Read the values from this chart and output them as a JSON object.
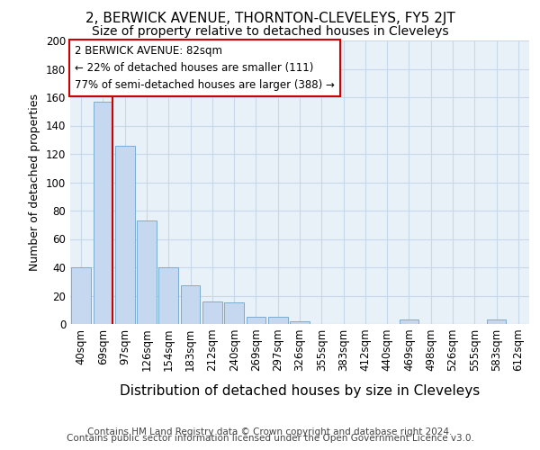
{
  "title": "2, BERWICK AVENUE, THORNTON-CLEVELEYS, FY5 2JT",
  "subtitle": "Size of property relative to detached houses in Cleveleys",
  "xlabel": "Distribution of detached houses by size in Cleveleys",
  "ylabel": "Number of detached properties",
  "categories": [
    "40sqm",
    "69sqm",
    "97sqm",
    "126sqm",
    "154sqm",
    "183sqm",
    "212sqm",
    "240sqm",
    "269sqm",
    "297sqm",
    "326sqm",
    "355sqm",
    "383sqm",
    "412sqm",
    "440sqm",
    "469sqm",
    "498sqm",
    "526sqm",
    "555sqm",
    "583sqm",
    "612sqm"
  ],
  "values": [
    40,
    157,
    126,
    73,
    40,
    27,
    16,
    15,
    5,
    5,
    2,
    0,
    0,
    0,
    0,
    3,
    0,
    0,
    0,
    3,
    0
  ],
  "bar_color": "#c5d8f0",
  "bar_edge_color": "#7aadd4",
  "grid_color": "#c8d8e8",
  "bg_color": "#e8f0f8",
  "vline_color": "#cc0000",
  "vline_x": 1.43,
  "annotation_text": "2 BERWICK AVENUE: 82sqm\n← 22% of detached houses are smaller (111)\n77% of semi-detached houses are larger (388) →",
  "annotation_box_color": "#ffffff",
  "annotation_box_edge": "#cc0000",
  "footer_line1": "Contains HM Land Registry data © Crown copyright and database right 2024.",
  "footer_line2": "Contains public sector information licensed under the Open Government Licence v3.0.",
  "ylim": [
    0,
    200
  ],
  "yticks": [
    0,
    20,
    40,
    60,
    80,
    100,
    120,
    140,
    160,
    180,
    200
  ],
  "title_fontsize": 11,
  "subtitle_fontsize": 10,
  "xlabel_fontsize": 11,
  "ylabel_fontsize": 9,
  "tick_fontsize": 8.5,
  "annotation_fontsize": 8.5,
  "footer_fontsize": 7.5
}
